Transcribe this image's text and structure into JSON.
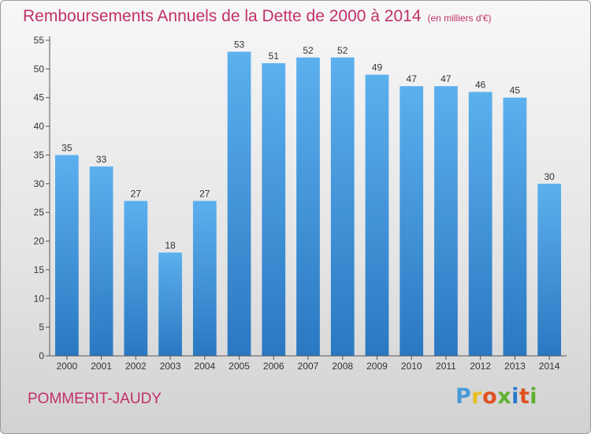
{
  "header": {
    "title": "Remboursements Annuels de la Dette de 2000 à 2014",
    "unit": "(en milliers d'€)"
  },
  "footer": {
    "commune": "POMMERIT-JAUDY",
    "logo": [
      "P",
      "r",
      "o",
      "x",
      "i",
      "t",
      "i"
    ],
    "logo_colors": [
      "#4a9ad8",
      "#e8c020",
      "#e05020",
      "#60b030",
      "#2a78c8",
      "#e05020",
      "#60b030"
    ]
  },
  "chart_data": {
    "type": "bar",
    "categories": [
      "2000",
      "2001",
      "2002",
      "2003",
      "2004",
      "2005",
      "2006",
      "2007",
      "2008",
      "2009",
      "2010",
      "2011",
      "2012",
      "2013",
      "2014"
    ],
    "values": [
      35,
      33,
      27,
      18,
      27,
      53,
      51,
      52,
      52,
      49,
      47,
      47,
      46,
      45,
      30
    ],
    "title": "Remboursements Annuels de la Dette de 2000 à 2014",
    "ylim": [
      0,
      55
    ],
    "yticks": [
      0,
      5,
      10,
      15,
      20,
      25,
      30,
      35,
      40,
      45,
      50,
      55
    ],
    "grid": false,
    "bar_color": "#3a8fd6"
  }
}
